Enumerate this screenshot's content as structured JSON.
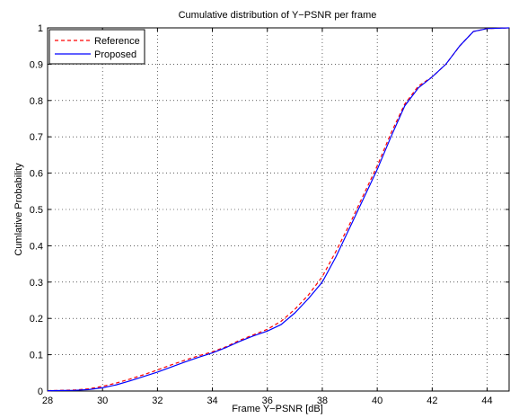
{
  "chart_data": {
    "type": "line",
    "title": "Cumulative distribution of Y−PSNR per frame",
    "xlabel": "Frame Y−PSNR [dB]",
    "ylabel": "Cumlative Probability",
    "xlim": [
      28,
      44.8
    ],
    "ylim": [
      0,
      1
    ],
    "xticks": [
      28,
      30,
      32,
      34,
      36,
      38,
      40,
      42,
      44
    ],
    "yticks": [
      0,
      0.1,
      0.2,
      0.3,
      0.4,
      0.5,
      0.6,
      0.7,
      0.8,
      0.9,
      1
    ],
    "grid": true,
    "legend_position": "top-left",
    "series": [
      {
        "name": "Reference",
        "color": "#ff0000",
        "style": "dashed",
        "x": [
          28,
          29,
          29.5,
          30,
          30.5,
          31,
          31.5,
          32,
          32.5,
          33,
          33.5,
          34,
          34.5,
          35,
          35.5,
          36,
          36.5,
          37,
          37.5,
          38,
          38.5,
          39,
          39.5,
          40,
          40.5,
          41,
          41.5,
          42,
          42.5,
          43,
          43.5,
          44,
          44.8
        ],
        "y": [
          0.001,
          0.003,
          0.006,
          0.013,
          0.022,
          0.033,
          0.045,
          0.058,
          0.072,
          0.085,
          0.097,
          0.108,
          0.122,
          0.14,
          0.155,
          0.17,
          0.192,
          0.225,
          0.265,
          0.315,
          0.385,
          0.46,
          0.54,
          0.62,
          0.71,
          0.79,
          0.84,
          0.865,
          0.9,
          0.95,
          0.99,
          0.998,
          1.0
        ]
      },
      {
        "name": "Proposed",
        "color": "#0000ff",
        "style": "solid",
        "x": [
          28,
          29,
          29.5,
          30,
          30.5,
          31,
          31.5,
          32,
          32.5,
          33,
          33.5,
          34,
          34.5,
          35,
          35.5,
          36,
          36.5,
          37,
          37.5,
          38,
          38.5,
          39,
          39.5,
          40,
          40.5,
          41,
          41.5,
          42,
          42.5,
          43,
          43.5,
          44,
          44.8
        ],
        "y": [
          0.001,
          0.002,
          0.004,
          0.009,
          0.017,
          0.028,
          0.04,
          0.052,
          0.066,
          0.08,
          0.093,
          0.105,
          0.12,
          0.137,
          0.152,
          0.165,
          0.183,
          0.215,
          0.255,
          0.3,
          0.37,
          0.45,
          0.53,
          0.61,
          0.7,
          0.785,
          0.835,
          0.865,
          0.9,
          0.95,
          0.99,
          0.998,
          1.0
        ]
      }
    ]
  }
}
